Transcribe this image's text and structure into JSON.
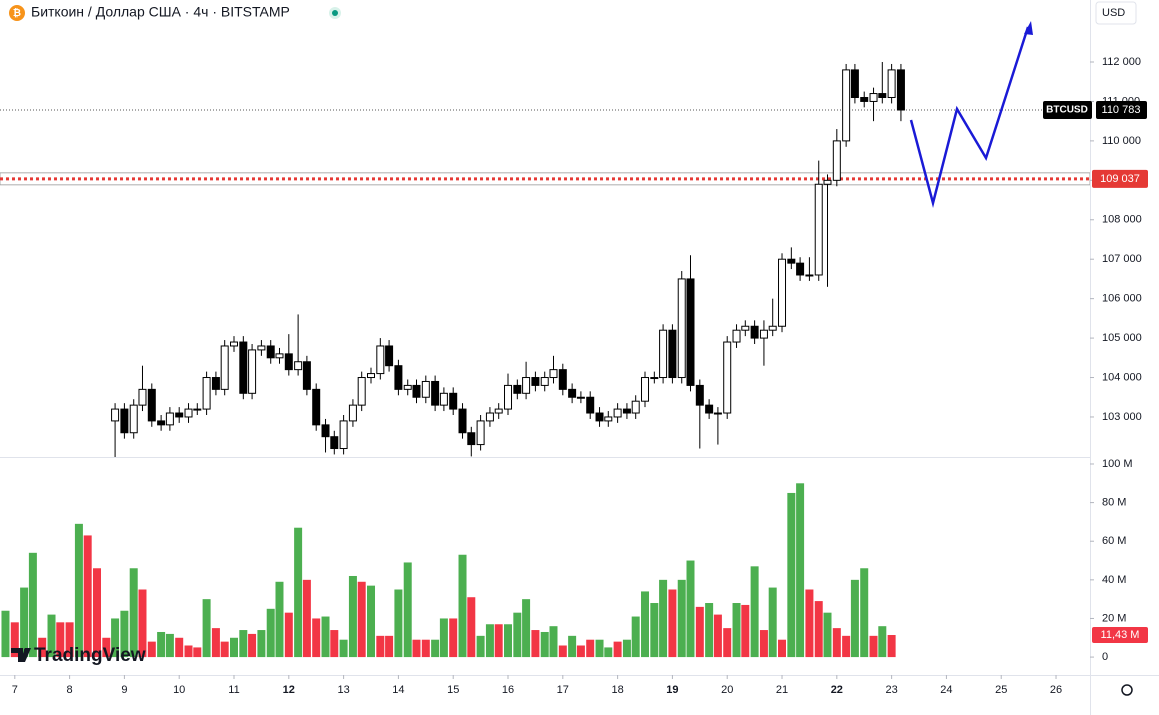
{
  "chart_data": {
    "type": "candlestick",
    "title": "Биткоин / Доллар США · 4ч · BITSTAMP",
    "currency": "USD",
    "logo": "TradingView",
    "xlim": [
      6.73,
      26.62
    ],
    "xticks": [
      7,
      8,
      9,
      10,
      11,
      12,
      13,
      14,
      15,
      16,
      17,
      18,
      19,
      20,
      21,
      22,
      23,
      24,
      25,
      26
    ],
    "ylim": [
      101985,
      113572
    ],
    "yticks": [
      {
        "value": 103000,
        "label": "103 000"
      },
      {
        "value": 104000,
        "label": "104 000"
      },
      {
        "value": 105000,
        "label": "105 000"
      },
      {
        "value": 106000,
        "label": "106 000"
      },
      {
        "value": 107000,
        "label": "107 000"
      },
      {
        "value": 108000,
        "label": "108 000"
      },
      {
        "value": 109000,
        "label": "109 000"
      },
      {
        "value": 110000,
        "label": "110 000"
      },
      {
        "value": 111000,
        "label": "111 000"
      },
      {
        "value": 112000,
        "label": "112 000"
      }
    ],
    "up_color": "#ffffff",
    "down_color": "#000000",
    "x": [
      8.83,
      9,
      9.17,
      9.33,
      9.5,
      9.67,
      9.83,
      10,
      10.17,
      10.33,
      10.5,
      10.67,
      10.83,
      11,
      11.17,
      11.33,
      11.5,
      11.67,
      11.83,
      12,
      12.17,
      12.33,
      12.5,
      12.67,
      12.83,
      13,
      13.17,
      13.33,
      13.5,
      13.67,
      13.83,
      14,
      14.17,
      14.33,
      14.5,
      14.67,
      14.83,
      15,
      15.17,
      15.33,
      15.5,
      15.67,
      15.83,
      16,
      16.17,
      16.33,
      16.5,
      16.67,
      16.83,
      17,
      17.17,
      17.33,
      17.5,
      17.67,
      17.83,
      18,
      18.17,
      18.33,
      18.5,
      18.67,
      18.83,
      19,
      19.17,
      19.33,
      19.5,
      19.67,
      19.83,
      20,
      20.17,
      20.33,
      20.5,
      20.67,
      20.83,
      21,
      21.17,
      21.33,
      21.5,
      21.67,
      21.83,
      22,
      22.17,
      22.33,
      22.5,
      22.67,
      22.83,
      23,
      23.17
    ],
    "open": [
      102900,
      103200,
      102600,
      103300,
      103700,
      102900,
      102800,
      103100,
      103000,
      103200,
      103200,
      104000,
      103700,
      104800,
      104900,
      103600,
      104700,
      104800,
      104500,
      104600,
      104200,
      104400,
      103700,
      102800,
      102500,
      102200,
      102900,
      103300,
      104000,
      104100,
      104800,
      104300,
      103700,
      103800,
      103500,
      103900,
      103300,
      103600,
      103200,
      102600,
      102300,
      102900,
      103100,
      103200,
      103800,
      103600,
      104000,
      103800,
      104000,
      104200,
      103700,
      103500,
      103500,
      103100,
      102900,
      103000,
      103200,
      103100,
      103400,
      104000,
      104000,
      105200,
      104000,
      106500,
      103800,
      103300,
      103100,
      103100,
      104900,
      105200,
      105300,
      105000,
      105200,
      105300,
      107000,
      106900,
      106600,
      106600,
      108900,
      109000,
      110000,
      111800,
      111100,
      111000,
      111200,
      111100,
      111800
    ],
    "high": [
      103350,
      103350,
      103450,
      104300,
      103850,
      103050,
      103250,
      103250,
      103350,
      103350,
      104150,
      104150,
      104950,
      105050,
      105050,
      104850,
      104950,
      104950,
      104750,
      105100,
      105600,
      104550,
      103850,
      102950,
      102650,
      103050,
      103450,
      104150,
      104250,
      105000,
      104950,
      104450,
      103950,
      103950,
      104050,
      104050,
      103750,
      103750,
      103350,
      102750,
      103050,
      103250,
      103350,
      104100,
      103950,
      104400,
      104150,
      104150,
      104550,
      104350,
      103850,
      103650,
      103650,
      103250,
      103150,
      103350,
      103350,
      103550,
      104150,
      104150,
      105350,
      105350,
      106700,
      107100,
      103950,
      103450,
      103250,
      105050,
      105350,
      105450,
      105450,
      105450,
      106000,
      107150,
      107300,
      107050,
      107050,
      109500,
      109150,
      110300,
      111950,
      111950,
      111250,
      111350,
      112000,
      111950,
      111950
    ],
    "low": [
      101900,
      102450,
      102450,
      103150,
      102750,
      102650,
      102650,
      102850,
      102850,
      103050,
      103050,
      103550,
      103550,
      104650,
      103450,
      103450,
      104550,
      104350,
      104350,
      104050,
      104050,
      103550,
      102650,
      102100,
      102050,
      102050,
      102750,
      103150,
      103850,
      103950,
      104150,
      103550,
      103550,
      103350,
      103350,
      103150,
      103150,
      103050,
      102450,
      102000,
      102150,
      102750,
      102950,
      103050,
      103450,
      103450,
      103650,
      103650,
      103850,
      103550,
      103350,
      103350,
      102950,
      102750,
      102750,
      102850,
      102950,
      102950,
      103250,
      103850,
      103850,
      103850,
      103850,
      103650,
      102200,
      102950,
      102300,
      102950,
      104750,
      105050,
      104850,
      104300,
      105050,
      105150,
      106750,
      106450,
      106450,
      106450,
      106300,
      108850,
      109850,
      110950,
      110850,
      110500,
      110950,
      110950,
      110500
    ],
    "close": [
      103200,
      102600,
      103300,
      103700,
      102900,
      102800,
      103100,
      103000,
      103200,
      103200,
      104000,
      103700,
      104800,
      104900,
      103600,
      104700,
      104800,
      104500,
      104600,
      104200,
      104400,
      103700,
      102800,
      102500,
      102200,
      102900,
      103300,
      104000,
      104100,
      104800,
      104300,
      103700,
      103800,
      103500,
      103900,
      103300,
      103600,
      103200,
      102600,
      102300,
      102900,
      103100,
      103200,
      103800,
      103600,
      104000,
      103800,
      104000,
      104200,
      103700,
      103500,
      103500,
      103100,
      102900,
      103000,
      103200,
      103100,
      103400,
      104000,
      104000,
      105200,
      104000,
      106500,
      103800,
      103300,
      103100,
      103100,
      104900,
      105200,
      105300,
      105000,
      105200,
      105300,
      107000,
      106900,
      106600,
      106600,
      108900,
      109000,
      110000,
      111800,
      111100,
      111000,
      111200,
      111100,
      111800,
      110783
    ],
    "last_price": {
      "name": "BTCUSD",
      "value": 110783,
      "label": "110 783",
      "color": "#000000"
    },
    "level": {
      "value": 109037,
      "label": "109 037",
      "color": "#e53935"
    },
    "volume": {
      "ylim": [
        -4.1,
        103.1
      ],
      "yticks": [
        0,
        {
          "value": 20,
          "label": "20 M"
        },
        {
          "value": 40,
          "label": "40 M"
        },
        {
          "value": 60,
          "label": "60 M"
        },
        {
          "value": 80,
          "label": "80 M"
        },
        {
          "value": 100,
          "label": "100 M"
        }
      ],
      "last_label": {
        "value": 11.43,
        "label": "11,43 M"
      },
      "x": [
        6.83,
        7,
        7.17,
        7.33,
        7.5,
        7.67,
        7.83,
        8,
        8.17,
        8.33,
        8.5,
        8.67,
        8.83,
        9,
        9.17,
        9.33,
        9.5,
        9.67,
        9.83,
        10,
        10.17,
        10.33,
        10.5,
        10.67,
        10.83,
        11,
        11.17,
        11.33,
        11.5,
        11.67,
        11.83,
        12,
        12.17,
        12.33,
        12.5,
        12.67,
        12.83,
        13,
        13.17,
        13.33,
        13.5,
        13.67,
        13.83,
        14,
        14.17,
        14.33,
        14.5,
        14.67,
        14.83,
        15,
        15.17,
        15.33,
        15.5,
        15.67,
        15.83,
        16,
        16.17,
        16.33,
        16.5,
        16.67,
        16.83,
        17,
        17.17,
        17.33,
        17.5,
        17.67,
        17.83,
        18,
        18.17,
        18.33,
        18.5,
        18.67,
        18.83,
        19,
        19.17,
        19.33,
        19.5,
        19.67,
        19.83,
        20,
        20.17,
        20.33,
        20.5,
        20.67,
        20.83,
        21,
        21.17,
        21.33,
        21.5,
        21.67,
        21.83,
        22,
        22.17,
        22.33,
        22.5,
        22.67,
        22.83,
        23
      ],
      "values": [
        24,
        18,
        36,
        54,
        10,
        22,
        18,
        18,
        69,
        63,
        46,
        10,
        20,
        24,
        46,
        35,
        8,
        13,
        12,
        10,
        6,
        5,
        30,
        15,
        8,
        10,
        14,
        12,
        14,
        25,
        39,
        23,
        67,
        40,
        20,
        21,
        14,
        9,
        42,
        39,
        37,
        11,
        11,
        35,
        49,
        9,
        9,
        9,
        20,
        20,
        53,
        31,
        11,
        17,
        17,
        17,
        23,
        30,
        14,
        13,
        16,
        6,
        11,
        6,
        9,
        9,
        5,
        8,
        9,
        21,
        34,
        28,
        40,
        35,
        40,
        50,
        26,
        28,
        22,
        15,
        28,
        27,
        47,
        14,
        36,
        9,
        85,
        90,
        35,
        29,
        23,
        15,
        11,
        40,
        46,
        11,
        16,
        11.43
      ],
      "colors": [
        "#4caf50",
        "#f23645",
        "#4caf50",
        "#4caf50",
        "#f23645",
        "#4caf50",
        "#f23645",
        "#f23645",
        "#4caf50",
        "#f23645",
        "#f23645",
        "#f23645",
        "#4caf50",
        "#4caf50",
        "#4caf50",
        "#f23645",
        "#f23645",
        "#4caf50",
        "#4caf50",
        "#f23645",
        "#f23645",
        "#f23645",
        "#4caf50",
        "#f23645",
        "#f23645",
        "#4caf50",
        "#4caf50",
        "#f23645",
        "#4caf50",
        "#4caf50",
        "#4caf50",
        "#f23645",
        "#4caf50",
        "#f23645",
        "#f23645",
        "#4caf50",
        "#f23645",
        "#4caf50",
        "#4caf50",
        "#f23645",
        "#4caf50",
        "#f23645",
        "#f23645",
        "#4caf50",
        "#4caf50",
        "#f23645",
        "#f23645",
        "#4caf50",
        "#4caf50",
        "#f23645",
        "#4caf50",
        "#f23645",
        "#4caf50",
        "#4caf50",
        "#f23645",
        "#4caf50",
        "#4caf50",
        "#4caf50",
        "#f23645",
        "#4caf50",
        "#4caf50",
        "#f23645",
        "#4caf50",
        "#f23645",
        "#f23645",
        "#4caf50",
        "#4caf50",
        "#f23645",
        "#4caf50",
        "#4caf50",
        "#4caf50",
        "#4caf50",
        "#4caf50",
        "#f23645",
        "#4caf50",
        "#4caf50",
        "#f23645",
        "#4caf50",
        "#f23645",
        "#f23645",
        "#4caf50",
        "#f23645",
        "#4caf50",
        "#f23645",
        "#4caf50",
        "#f23645",
        "#4caf50",
        "#4caf50",
        "#f23645",
        "#f23645",
        "#4caf50",
        "#f23645",
        "#f23645",
        "#4caf50",
        "#4caf50",
        "#f23645",
        "#4caf50",
        "#f23645"
      ]
    }
  }
}
